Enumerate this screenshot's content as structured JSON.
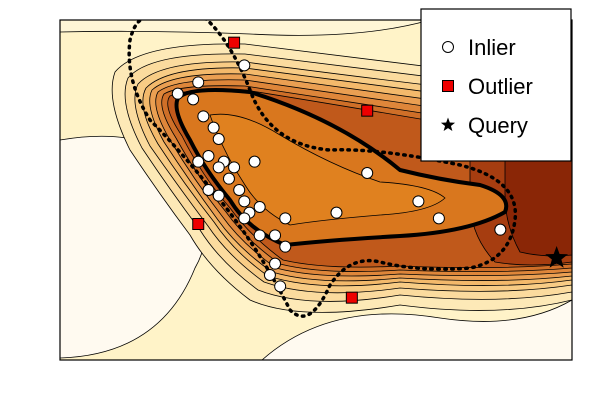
{
  "chart_data": {
    "type": "scatter",
    "title": "",
    "xlabel": "",
    "ylabel": "",
    "xlim": [
      0,
      10
    ],
    "ylim": [
      0,
      6
    ],
    "grid": false,
    "background": "filled density contour map, cream (low) to dark red (high)",
    "legend": {
      "placement": "top-right",
      "entries": [
        {
          "label": "Inlier",
          "marker": "circle-open"
        },
        {
          "label": "Outlier",
          "marker": "square-red"
        },
        {
          "label": "Query",
          "marker": "star-black"
        }
      ]
    },
    "series": [
      {
        "name": "Inlier",
        "marker": "circle-open",
        "points": [
          [
            2.3,
            4.7
          ],
          [
            2.7,
            4.9
          ],
          [
            3.6,
            5.2
          ],
          [
            2.6,
            4.6
          ],
          [
            2.8,
            4.3
          ],
          [
            3.0,
            4.1
          ],
          [
            3.1,
            3.9
          ],
          [
            2.9,
            3.6
          ],
          [
            3.2,
            3.5
          ],
          [
            2.7,
            3.5
          ],
          [
            3.1,
            3.4
          ],
          [
            3.4,
            3.4
          ],
          [
            3.8,
            3.5
          ],
          [
            3.3,
            3.2
          ],
          [
            3.5,
            3.0
          ],
          [
            2.9,
            3.0
          ],
          [
            3.1,
            2.9
          ],
          [
            3.6,
            2.8
          ],
          [
            3.7,
            2.6
          ],
          [
            3.9,
            2.7
          ],
          [
            3.6,
            2.5
          ],
          [
            3.9,
            2.2
          ],
          [
            4.4,
            2.5
          ],
          [
            4.2,
            2.2
          ],
          [
            4.4,
            2.0
          ],
          [
            4.2,
            1.7
          ],
          [
            4.1,
            1.5
          ],
          [
            4.3,
            1.3
          ],
          [
            5.4,
            2.6
          ],
          [
            6.0,
            3.3
          ],
          [
            7.0,
            2.8
          ],
          [
            7.4,
            2.5
          ],
          [
            8.6,
            2.3
          ]
        ]
      },
      {
        "name": "Outlier",
        "marker": "square-red",
        "points": [
          [
            3.4,
            5.6
          ],
          [
            6.0,
            4.4
          ],
          [
            2.7,
            2.4
          ],
          [
            5.7,
            1.1
          ]
        ]
      },
      {
        "name": "Query",
        "marker": "star-black",
        "points": [
          [
            9.7,
            1.8
          ]
        ]
      }
    ]
  }
}
